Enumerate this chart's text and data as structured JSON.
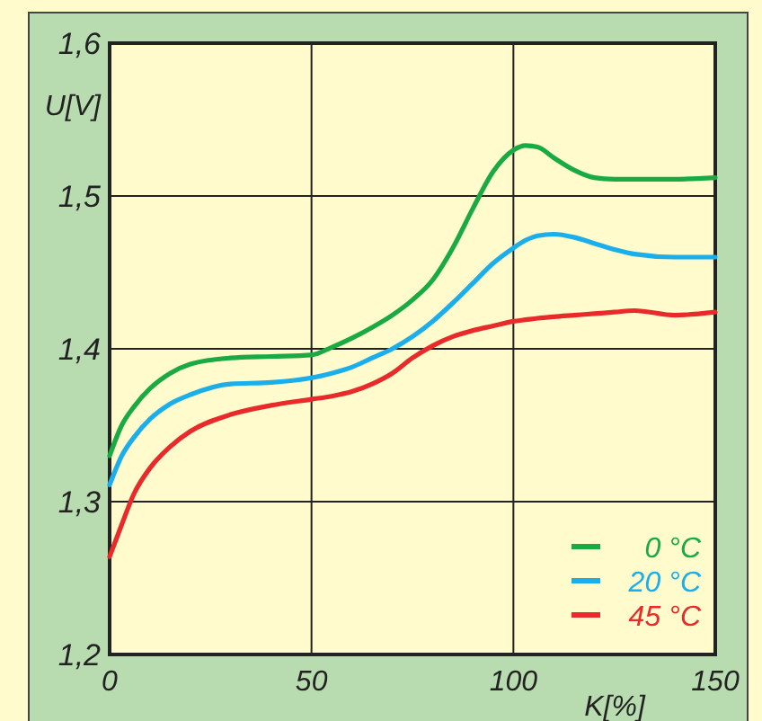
{
  "chart_data": {
    "type": "line",
    "xlabel": "K[%]",
    "ylabel": "U[V]",
    "xlim": [
      0,
      150
    ],
    "xticks": [
      0,
      50,
      100,
      150
    ],
    "ylim": [
      1.2,
      1.6
    ],
    "yticks": [
      {
        "value": 1.2,
        "label": "1,2"
      },
      {
        "value": 1.3,
        "label": "1,3"
      },
      {
        "value": 1.4,
        "label": "1,4"
      },
      {
        "value": 1.5,
        "label": "1,5"
      },
      {
        "value": 1.6,
        "label": "1,6"
      }
    ],
    "grid": true,
    "legend": "bottom right",
    "line_style": "solid",
    "x": [
      0,
      3,
      6,
      10,
      15,
      20,
      30,
      40,
      50,
      55,
      60,
      65,
      70,
      75,
      80,
      85,
      90,
      95,
      100,
      103,
      106,
      110,
      115,
      120,
      125,
      130,
      140,
      150
    ],
    "series": [
      {
        "name": "0 °C",
        "color": "#1aaa44",
        "values": [
          1.33,
          1.35,
          1.362,
          1.374,
          1.384,
          1.39,
          1.394,
          1.395,
          1.396,
          1.401,
          1.407,
          1.414,
          1.422,
          1.432,
          1.445,
          1.466,
          1.492,
          1.516,
          1.53,
          1.533,
          1.532,
          1.525,
          1.517,
          1.512,
          1.511,
          1.511,
          1.511,
          1.512
        ]
      },
      {
        "name": "20 °C",
        "color": "#1aaeea",
        "values": [
          1.311,
          1.33,
          1.342,
          1.354,
          1.364,
          1.37,
          1.377,
          1.378,
          1.381,
          1.384,
          1.388,
          1.394,
          1.4,
          1.408,
          1.418,
          1.43,
          1.443,
          1.456,
          1.466,
          1.471,
          1.474,
          1.475,
          1.473,
          1.469,
          1.465,
          1.462,
          1.46,
          1.46
        ]
      },
      {
        "name": "45 °C",
        "color": "#e82a2a",
        "values": [
          1.264,
          1.285,
          1.305,
          1.322,
          1.336,
          1.346,
          1.357,
          1.363,
          1.367,
          1.369,
          1.372,
          1.377,
          1.384,
          1.394,
          1.402,
          1.408,
          1.412,
          1.415,
          1.418,
          1.419,
          1.42,
          1.421,
          1.422,
          1.423,
          1.424,
          1.425,
          1.422,
          1.424
        ]
      }
    ]
  }
}
